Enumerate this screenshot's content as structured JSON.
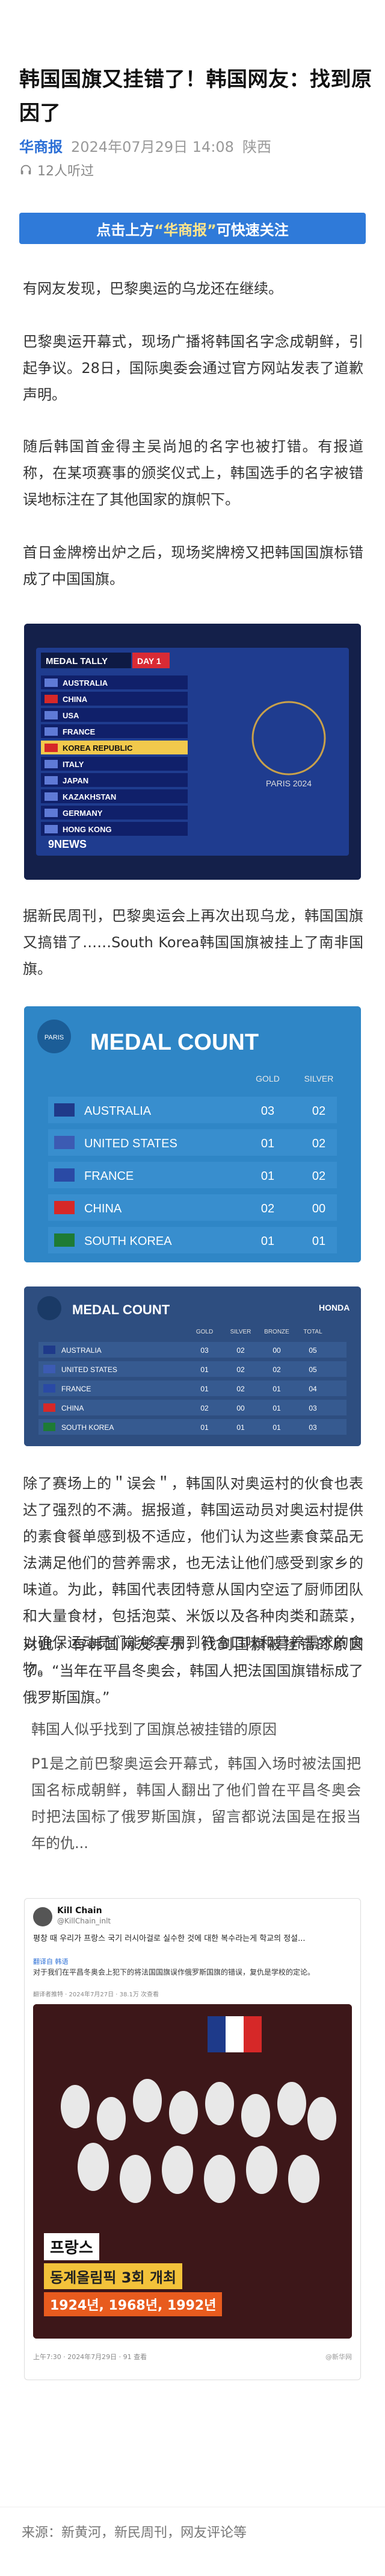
{
  "article": {
    "title": "韩国国旗又挂错了！韩国网友：找到原因了",
    "source": "华商报",
    "date": "2024年07月29日 14:08",
    "region": "陕西",
    "listeners": "12人听过",
    "follow_banner": {
      "prefix": "点击上方",
      "highlight": "“华商报”",
      "suffix": "可快速关注"
    },
    "paragraphs": [
      "有网友发现，巴黎奥运的乌龙还在继续。",
      "巴黎奥运开幕式，现场广播将韩国名字念成朝鲜，引起争议。28日，国际奥委会通过官方网站发表了道歉声明。",
      "随后韩国首金得主吴尚旭的名字也被打错。有报道称，在某项赛事的颁奖仪式上，韩国选手的名字被错误地标注在了其他国家的旗帜下。",
      "首日金牌榜出炉之后，现场奖牌榜又把韩国国旗标错成了中国国旗。",
      "据新民周刊，巴黎奥运会上再次出现乌龙，韩国国旗又搞错了……South Korea韩国国旗被挂上了南非国旗。",
      "除了赛场上的＂误会＂，韩国队对奥运村的伙食也表达了强烈的不满。据报道，韩国运动员对奥运村提供的素食餐单感到极不适应，他们认为这些素食菜品无法满足他们的营养需求，也无法让他们感受到家乡的味道。为此，韩国代表团特意从国内空运了厨师团队和大量食材，包括泡菜、米饭以及各种肉类和蔬菜，以确保运动员们能够享用到符合口味和营养需求的食物。",
      "对此，有韩国网友表示，找到国旗被挂错的原因了。“当年在平昌冬奥会，韩国人把法国国旗错标成了俄罗斯国旗。”",
      "P1是之前巴黎奥运会开幕式，韩国入场时被法国把国名标成朝鲜，韩国人翻出了他们曾在平昌冬奥会时把法国标了俄罗斯国旗，留言都说法国是在报当年的仇..."
    ],
    "quote_title": "韩国人似乎找到了国旗总被挂错的原因",
    "footer": "来源：新黄河，新民周刊，网友评论等"
  },
  "medal_tally": {
    "header": "MEDAL TALLY",
    "day": "DAY 1",
    "countries": [
      "AUSTRALIA",
      "CHINA",
      "USA",
      "FRANCE",
      "KOREA REPUBLIC",
      "ITALY",
      "JAPAN",
      "KAZAKHSTAN",
      "GERMANY",
      "HONG KONG"
    ],
    "games": "PARIS 2024",
    "broadcaster": "9NEWS"
  },
  "medal_count": {
    "header": "MEDAL COUNT",
    "col_gold": "GOLD",
    "col_silver": "SILVER",
    "rows": [
      {
        "country": "AUSTRALIA",
        "gold": "03",
        "silver": "02"
      },
      {
        "country": "UNITED STATES",
        "gold": "01",
        "silver": "02"
      },
      {
        "country": "FRANCE",
        "gold": "01",
        "silver": "02"
      },
      {
        "country": "CHINA",
        "gold": "02",
        "silver": "00"
      },
      {
        "country": "SOUTH KOREA",
        "gold": "01",
        "silver": "01"
      }
    ],
    "logo_text": "PARIS"
  },
  "medal_count_small": {
    "header": "MEDAL COUNT",
    "cols": [
      "GOLD",
      "SILVER",
      "BRONZE",
      "TOTAL"
    ],
    "sponsor": "HONDA",
    "rows": [
      {
        "country": "AUSTRALIA",
        "vals": [
          "03",
          "02",
          "00",
          "05"
        ]
      },
      {
        "country": "UNITED STATES",
        "vals": [
          "01",
          "02",
          "02",
          "05"
        ]
      },
      {
        "country": "FRANCE",
        "vals": [
          "01",
          "02",
          "01",
          "04"
        ]
      },
      {
        "country": "CHINA",
        "vals": [
          "02",
          "00",
          "01",
          "03"
        ]
      },
      {
        "country": "SOUTH KOREA",
        "vals": [
          "01",
          "01",
          "01",
          "03"
        ]
      }
    ]
  },
  "tweet": {
    "author": "Kill Chain",
    "handle": "@KillChain_inlt",
    "text_ko": "평창 때 우리가 프랑스 국기 러시아걸로 실수한 것에 대한 복수라는게 학교의 정설...",
    "translate": "翻译自 韩语",
    "text_zh": "对于我们在平昌冬奥会上犯下的将法国国旗误作俄罗斯国旗的错误，复仇是学校的定论。",
    "time": "翻译者推特 · 2024年7月27日 · 38.1万 次查看",
    "caption_ko": "프랑스",
    "caption_sub": "동계올림픽 3회 개최",
    "caption_years": "1924년, 1968년, 1992년",
    "post_time": "上午7:30 · 2024年7月29日 · 91 查看",
    "watermark": "@新华网"
  }
}
